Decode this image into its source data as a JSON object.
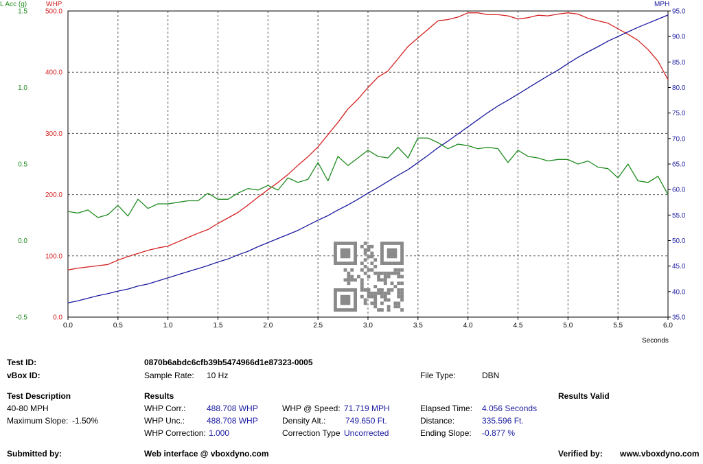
{
  "chart_data": {
    "type": "line",
    "x_axis": {
      "label": "Seconds",
      "range": [
        0,
        6
      ],
      "ticks": [
        "0.0",
        "0.5",
        "1.0",
        "1.5",
        "2.0",
        "2.5",
        "3.0",
        "3.5",
        "4.0",
        "4.5",
        "5.0",
        "5.5",
        "6.0"
      ]
    },
    "axes": {
      "lacc": {
        "label": "L Acc (g)",
        "range": [
          -0.5,
          1.5
        ],
        "ticks": [
          "-0.5",
          "0.0",
          "0.5",
          "1.0",
          "1.5"
        ],
        "color": "#1e8a1e"
      },
      "whp": {
        "label": "WHP",
        "range": [
          0,
          500
        ],
        "ticks": [
          "0.0",
          "100.0",
          "200.0",
          "300.0",
          "400.0",
          "500.0"
        ],
        "color": "#d42020"
      },
      "mph": {
        "label": "MPH",
        "range": [
          35,
          95
        ],
        "ticks": [
          "35.0",
          "40.0",
          "45.0",
          "50.0",
          "55.0",
          "60.0",
          "65.0",
          "70.0",
          "75.0",
          "80.0",
          "85.0",
          "90.0",
          "95.0"
        ],
        "color": "#1a1aa0"
      }
    },
    "grid": true,
    "series": [
      {
        "axis": "whp",
        "color": "#d42020",
        "x": [
          0,
          0.1,
          0.2,
          0.3,
          0.4,
          0.5,
          0.6,
          0.7,
          0.8,
          0.9,
          1.0,
          1.1,
          1.2,
          1.3,
          1.4,
          1.5,
          1.6,
          1.7,
          1.8,
          1.9,
          2.0,
          2.1,
          2.2,
          2.3,
          2.4,
          2.5,
          2.6,
          2.7,
          2.8,
          2.9,
          3.0,
          3.1,
          3.2,
          3.3,
          3.4,
          3.5,
          3.6,
          3.7,
          3.8,
          3.9,
          4.0,
          4.1,
          4.2,
          4.3,
          4.4,
          4.5,
          4.6,
          4.7,
          4.8,
          4.9,
          5.0,
          5.1,
          5.2,
          5.3,
          5.4,
          5.5,
          5.6,
          5.7,
          5.8,
          5.9,
          6.0
        ],
        "values": [
          77,
          80,
          82,
          84,
          86,
          93,
          99,
          104,
          109,
          113,
          116,
          123,
          130,
          137,
          143,
          153,
          162,
          171,
          183,
          196,
          208,
          220,
          233,
          248,
          262,
          278,
          298,
          318,
          340,
          356,
          375,
          392,
          402,
          422,
          442,
          456,
          470,
          484,
          486,
          490,
          497,
          497,
          494,
          494,
          492,
          487,
          489,
          493,
          492,
          495,
          497,
          495,
          488,
          484,
          480,
          471,
          462,
          452,
          437,
          418,
          388
        ]
      },
      {
        "axis": "mph",
        "color": "#1a1aa0",
        "x": [
          0,
          0.1,
          0.2,
          0.3,
          0.4,
          0.5,
          0.6,
          0.7,
          0.8,
          0.9,
          1.0,
          1.1,
          1.2,
          1.3,
          1.4,
          1.5,
          1.6,
          1.7,
          1.8,
          1.9,
          2.0,
          2.1,
          2.2,
          2.3,
          2.4,
          2.5,
          2.6,
          2.7,
          2.8,
          2.9,
          3.0,
          3.1,
          3.2,
          3.3,
          3.4,
          3.5,
          3.6,
          3.7,
          3.8,
          3.9,
          4.0,
          4.1,
          4.2,
          4.3,
          4.4,
          4.5,
          4.6,
          4.7,
          4.8,
          4.9,
          5.0,
          5.1,
          5.2,
          5.3,
          5.4,
          5.5,
          5.6,
          5.7,
          5.8,
          5.9,
          6.0
        ],
        "values": [
          37.8,
          38.2,
          38.7,
          39.2,
          39.6,
          40.1,
          40.5,
          41.1,
          41.5,
          42.1,
          42.7,
          43.3,
          43.9,
          44.5,
          45.1,
          45.8,
          46.4,
          47.2,
          47.9,
          48.8,
          49.6,
          50.4,
          51.2,
          52.0,
          53.0,
          54.0,
          54.9,
          56.0,
          57.0,
          58.1,
          59.3,
          60.4,
          61.6,
          62.8,
          63.9,
          65.3,
          66.7,
          68.2,
          69.5,
          70.9,
          72.3,
          73.7,
          75.1,
          76.4,
          77.5,
          78.7,
          79.9,
          81.1,
          82.3,
          83.4,
          84.7,
          85.9,
          87.0,
          88.0,
          89.1,
          90.0,
          90.9,
          91.8,
          92.6,
          93.4,
          94.2
        ]
      },
      {
        "axis": "lacc",
        "color": "#1e8a1e",
        "x": [
          0,
          0.1,
          0.2,
          0.3,
          0.4,
          0.5,
          0.6,
          0.7,
          0.8,
          0.9,
          1.0,
          1.1,
          1.2,
          1.3,
          1.4,
          1.5,
          1.6,
          1.7,
          1.8,
          1.9,
          2.0,
          2.1,
          2.2,
          2.3,
          2.4,
          2.5,
          2.6,
          2.7,
          2.8,
          2.9,
          3.0,
          3.1,
          3.2,
          3.3,
          3.4,
          3.5,
          3.6,
          3.7,
          3.8,
          3.9,
          4.0,
          4.1,
          4.2,
          4.3,
          4.4,
          4.5,
          4.6,
          4.7,
          4.8,
          4.9,
          5.0,
          5.1,
          5.2,
          5.3,
          5.4,
          5.5,
          5.6,
          5.7,
          5.8,
          5.9,
          6.0
        ],
        "values": [
          0.19,
          0.18,
          0.2,
          0.15,
          0.17,
          0.23,
          0.16,
          0.27,
          0.21,
          0.24,
          0.24,
          0.25,
          0.26,
          0.26,
          0.31,
          0.27,
          0.27,
          0.31,
          0.34,
          0.33,
          0.36,
          0.33,
          0.41,
          0.38,
          0.4,
          0.51,
          0.39,
          0.55,
          0.49,
          0.54,
          0.59,
          0.55,
          0.54,
          0.61,
          0.54,
          0.67,
          0.67,
          0.64,
          0.6,
          0.63,
          0.62,
          0.6,
          0.61,
          0.6,
          0.51,
          0.59,
          0.55,
          0.54,
          0.52,
          0.53,
          0.53,
          0.5,
          0.52,
          0.48,
          0.47,
          0.41,
          0.5,
          0.39,
          0.38,
          0.42,
          0.3
        ]
      }
    ]
  },
  "watermark": "vboxdyno QR code",
  "info": {
    "test_id_label": "Test ID:",
    "test_id_value": "0870b6abdc6cfb39b5474966d1e87323-0005",
    "vbox_id_label": "vBox ID:",
    "sample_rate_label": "Sample Rate:",
    "sample_rate_value": "10 Hz",
    "file_type_label": "File Type:",
    "file_type_value": "DBN",
    "test_desc_label": "Test Description",
    "test_desc_value": "40-80 MPH",
    "max_slope_label": "Maximum Slope:",
    "max_slope_value": "-1.50%",
    "results_label": "Results",
    "results_valid": "Results Valid",
    "whp_corr_label": "WHP Corr.:",
    "whp_corr_value": "488.708 WHP",
    "whp_unc_label": "WHP Unc.:",
    "whp_unc_value": "488.708 WHP",
    "whp_correction_label": "WHP Correction:",
    "whp_correction_value": "1.000",
    "whp_speed_label": "WHP @ Speed:",
    "whp_speed_value": "71.719 MPH",
    "density_alt_label": "Density Alt.:",
    "density_alt_value": "749.650 Ft.",
    "correction_type_label": "Correction Type",
    "correction_type_value": "Uncorrected",
    "elapsed_label": "Elapsed Time:",
    "elapsed_value": "4.056 Seconds",
    "distance_label": "Distance:",
    "distance_value": "335.596 Ft.",
    "ending_slope_label": "Ending Slope:",
    "ending_slope_value": "-0.877 %",
    "submitted_label": "Submitted by:",
    "web_interface": "Web interface @ vboxdyno.com",
    "verified_label": "Verified by:",
    "verified_value": "www.vboxdyno.com"
  }
}
